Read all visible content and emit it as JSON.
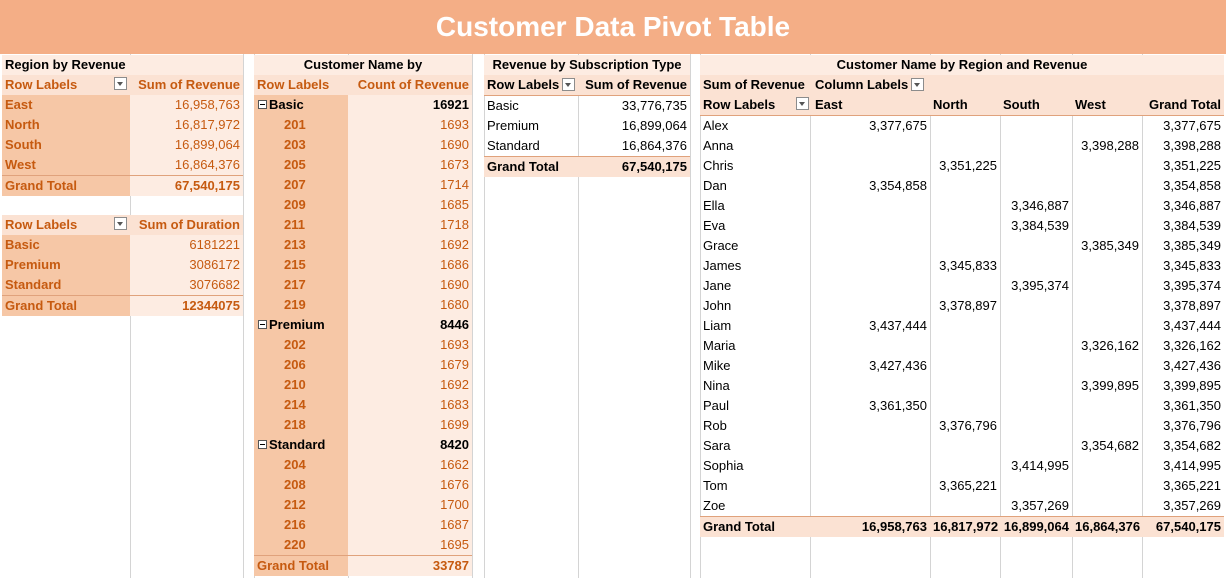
{
  "title": "Customer Data Pivot Table",
  "region_revenue": {
    "caption": "Region by Revenue",
    "header": [
      "Row Labels",
      "Sum of Revenue"
    ],
    "rows": [
      {
        "label": "East",
        "value": "16,958,763"
      },
      {
        "label": "North",
        "value": "16,817,972"
      },
      {
        "label": "South",
        "value": "16,899,064"
      },
      {
        "label": "West",
        "value": "16,864,376"
      }
    ],
    "total": {
      "label": "Grand Total",
      "value": "67,540,175"
    }
  },
  "duration": {
    "header": [
      "Row Labels",
      "Sum of Duration"
    ],
    "rows": [
      {
        "label": "Basic",
        "value": "6181221"
      },
      {
        "label": "Premium",
        "value": "3086172"
      },
      {
        "label": "Standard",
        "value": "3076682"
      }
    ],
    "total": {
      "label": "Grand Total",
      "value": "12344075"
    }
  },
  "customer_count": {
    "caption": "Customer Name by",
    "header": [
      "Row Labels",
      "Count of Revenue"
    ],
    "groups": [
      {
        "label": "Basic",
        "value": "16921",
        "items": [
          {
            "label": "201",
            "value": "1693"
          },
          {
            "label": "203",
            "value": "1690"
          },
          {
            "label": "205",
            "value": "1673"
          },
          {
            "label": "207",
            "value": "1714"
          },
          {
            "label": "209",
            "value": "1685"
          },
          {
            "label": "211",
            "value": "1718"
          },
          {
            "label": "213",
            "value": "1692"
          },
          {
            "label": "215",
            "value": "1686"
          },
          {
            "label": "217",
            "value": "1690"
          },
          {
            "label": "219",
            "value": "1680"
          }
        ]
      },
      {
        "label": "Premium",
        "value": "8446",
        "items": [
          {
            "label": "202",
            "value": "1693"
          },
          {
            "label": "206",
            "value": "1679"
          },
          {
            "label": "210",
            "value": "1692"
          },
          {
            "label": "214",
            "value": "1683"
          },
          {
            "label": "218",
            "value": "1699"
          }
        ]
      },
      {
        "label": "Standard",
        "value": "8420",
        "items": [
          {
            "label": "204",
            "value": "1662"
          },
          {
            "label": "208",
            "value": "1676"
          },
          {
            "label": "212",
            "value": "1700"
          },
          {
            "label": "216",
            "value": "1687"
          },
          {
            "label": "220",
            "value": "1695"
          }
        ]
      }
    ],
    "total": {
      "label": "Grand Total",
      "value": "33787"
    }
  },
  "subscription": {
    "caption": "Revenue by Subscription Type",
    "header": [
      "Row Labels",
      "Sum of Revenue"
    ],
    "rows": [
      {
        "label": "Basic",
        "value": "33,776,735"
      },
      {
        "label": "Premium",
        "value": "16,899,064"
      },
      {
        "label": "Standard",
        "value": "16,864,376"
      }
    ],
    "total": {
      "label": "Grand Total",
      "value": "67,540,175"
    }
  },
  "matrix": {
    "caption": "Customer Name by Region and Revenue",
    "sum_label": "Sum of Revenue",
    "column_labels": "Column Labels",
    "row_labels": "Row Labels",
    "columns": [
      "East",
      "North",
      "South",
      "West",
      "Grand Total"
    ],
    "rows": [
      {
        "name": "Alex",
        "values": [
          "3,377,675",
          "",
          "",
          "",
          "3,377,675"
        ]
      },
      {
        "name": "Anna",
        "values": [
          "",
          "",
          "",
          "3,398,288",
          "3,398,288"
        ]
      },
      {
        "name": "Chris",
        "values": [
          "",
          "3,351,225",
          "",
          "",
          "3,351,225"
        ]
      },
      {
        "name": "Dan",
        "values": [
          "3,354,858",
          "",
          "",
          "",
          "3,354,858"
        ]
      },
      {
        "name": "Ella",
        "values": [
          "",
          "",
          "3,346,887",
          "",
          "3,346,887"
        ]
      },
      {
        "name": "Eva",
        "values": [
          "",
          "",
          "3,384,539",
          "",
          "3,384,539"
        ]
      },
      {
        "name": "Grace",
        "values": [
          "",
          "",
          "",
          "3,385,349",
          "3,385,349"
        ]
      },
      {
        "name": "James",
        "values": [
          "",
          "3,345,833",
          "",
          "",
          "3,345,833"
        ]
      },
      {
        "name": "Jane",
        "values": [
          "",
          "",
          "3,395,374",
          "",
          "3,395,374"
        ]
      },
      {
        "name": "John",
        "values": [
          "",
          "3,378,897",
          "",
          "",
          "3,378,897"
        ]
      },
      {
        "name": "Liam",
        "values": [
          "3,437,444",
          "",
          "",
          "",
          "3,437,444"
        ]
      },
      {
        "name": "Maria",
        "values": [
          "",
          "",
          "",
          "3,326,162",
          "3,326,162"
        ]
      },
      {
        "name": "Mike",
        "values": [
          "3,427,436",
          "",
          "",
          "",
          "3,427,436"
        ]
      },
      {
        "name": "Nina",
        "values": [
          "",
          "",
          "",
          "3,399,895",
          "3,399,895"
        ]
      },
      {
        "name": "Paul",
        "values": [
          "3,361,350",
          "",
          "",
          "",
          "3,361,350"
        ]
      },
      {
        "name": "Rob",
        "values": [
          "",
          "3,376,796",
          "",
          "",
          "3,376,796"
        ]
      },
      {
        "name": "Sara",
        "values": [
          "",
          "",
          "",
          "3,354,682",
          "3,354,682"
        ]
      },
      {
        "name": "Sophia",
        "values": [
          "",
          "",
          "3,414,995",
          "",
          "3,414,995"
        ]
      },
      {
        "name": "Tom",
        "values": [
          "",
          "3,365,221",
          "",
          "",
          "3,365,221"
        ]
      },
      {
        "name": "Zoe",
        "values": [
          "",
          "",
          "3,357,269",
          "",
          "3,357,269"
        ]
      }
    ],
    "total": {
      "name": "Grand Total",
      "values": [
        "16,958,763",
        "16,817,972",
        "16,899,064",
        "16,864,376",
        "67,540,175"
      ]
    }
  }
}
